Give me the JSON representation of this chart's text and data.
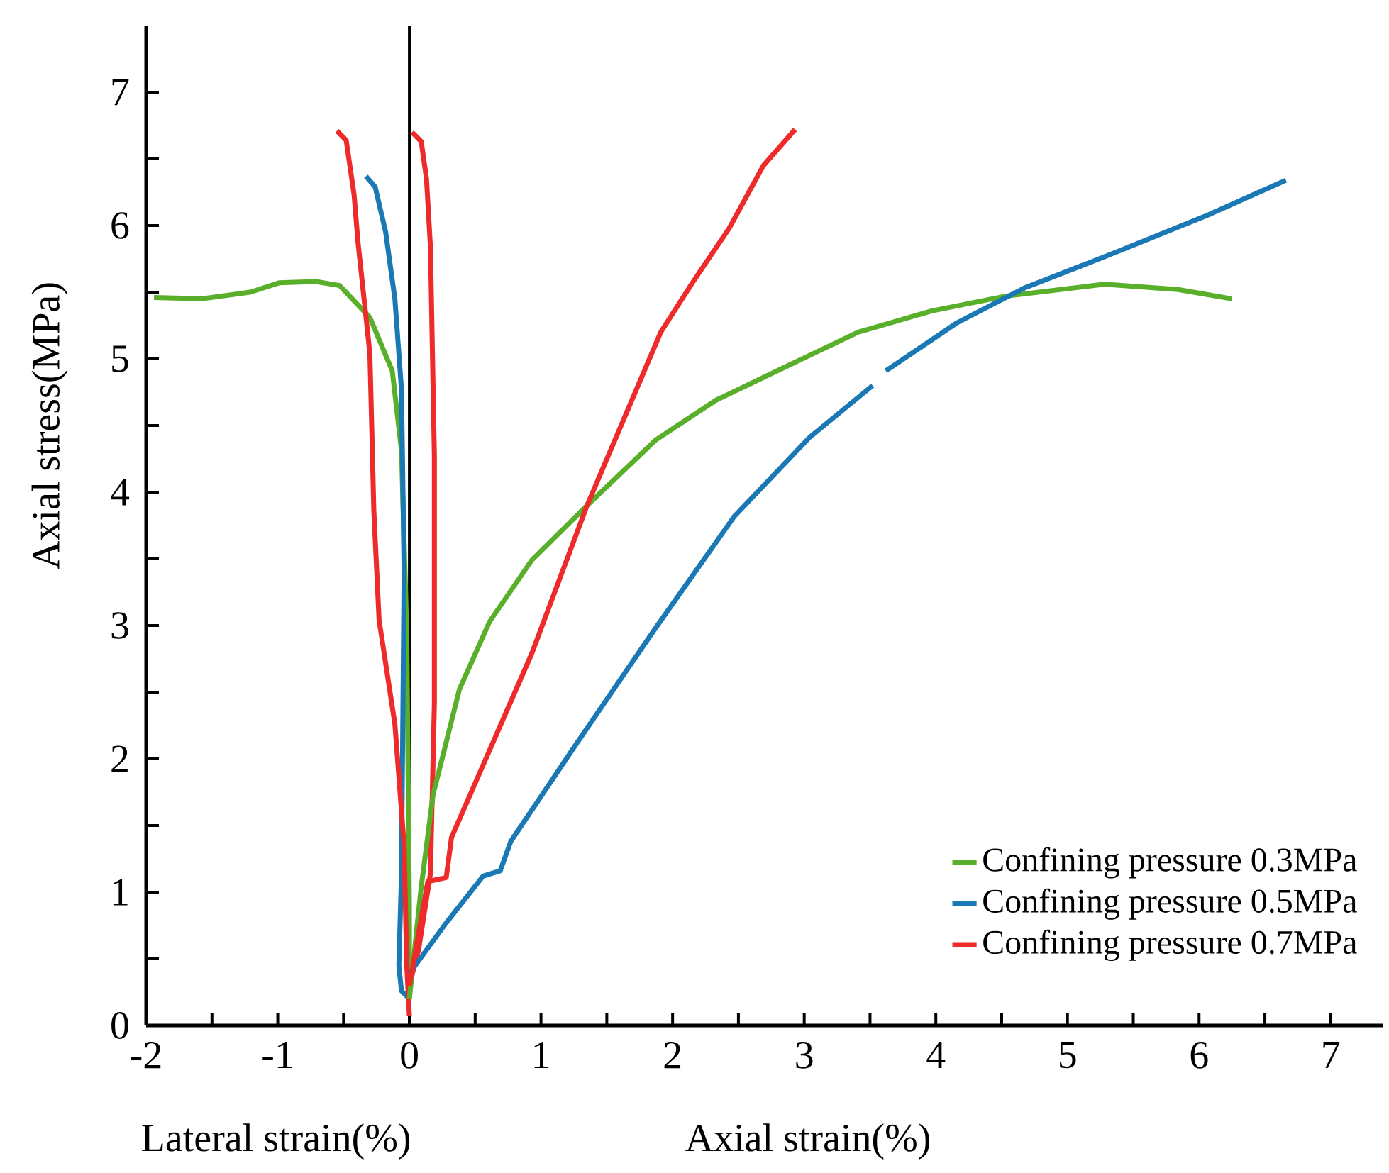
{
  "chart_data": {
    "type": "line",
    "xlabel": "Axial strain(%)",
    "ylabel": "Axial stress(MPa)",
    "annotations": [
      "Lateral strain(%)"
    ],
    "xlim": [
      -2,
      7.4
    ],
    "ylim": [
      0,
      7.5
    ],
    "xticks": [
      -2,
      {
        "value": -1.5,
        "label": null
      },
      -1,
      {
        "value": -0.5,
        "label": null
      },
      0,
      {
        "value": 0.5,
        "label": null
      },
      1,
      {
        "value": 1.5,
        "label": null
      },
      2,
      {
        "value": 2.5,
        "label": null
      },
      3,
      {
        "value": 3.5,
        "label": null
      },
      4,
      {
        "value": 4.5,
        "label": null
      },
      5,
      {
        "value": 5.5,
        "label": null
      },
      6,
      {
        "value": 6.5,
        "label": null
      },
      7
    ],
    "yticks": [
      0,
      {
        "value": 0.5,
        "label": null
      },
      1,
      {
        "value": 1.5,
        "label": null
      },
      2,
      {
        "value": 2.5,
        "label": null
      },
      3,
      {
        "value": 3.5,
        "label": null
      },
      4,
      {
        "value": 4.5,
        "label": null
      },
      5,
      {
        "value": 5.5,
        "label": null
      },
      6,
      {
        "value": 6.5,
        "label": null
      },
      7
    ],
    "grid": false,
    "legend": "bottom right",
    "marker": "none",
    "line_style": "solid",
    "ref_lines": [
      {
        "axis": "x",
        "value": 0,
        "label": null,
        "color": "#000000"
      }
    ],
    "series": [
      {
        "name": "Confining pressure 0.3MPa",
        "color": "#5aaf2a",
        "x": [
          0,
          0.09,
          0.18,
          0.38,
          0.61,
          0.93,
          1.35,
          1.87,
          2.33,
          2.9,
          3.41,
          3.97,
          4.53,
          5.28,
          5.84,
          6.25
        ],
        "values": [
          0.2,
          1.04,
          1.73,
          2.52,
          3.03,
          3.49,
          3.9,
          4.39,
          4.69,
          4.96,
          5.2,
          5.36,
          5.47,
          5.56,
          5.52,
          5.45
        ]
      },
      {
        "name": "Confining pressure 0.5MPa",
        "color": "#1a78b4",
        "x": [
          0,
          0.28,
          0.56,
          0.69,
          0.77,
          1.26,
          1.87,
          2.47,
          3.04,
          3.52,
          3.57,
          3.62,
          4.16,
          4.67,
          5.37,
          6.07,
          6.66
        ],
        "values": [
          0.39,
          0.77,
          1.12,
          1.16,
          1.38,
          2.1,
          2.98,
          3.82,
          4.41,
          4.8,
          null,
          4.91,
          5.27,
          5.53,
          5.8,
          6.08,
          6.34
        ]
      },
      {
        "name": "Confining pressure 0.7MPa",
        "color": "#ee2a2a",
        "x": [
          0,
          0.14,
          0.28,
          0.32,
          0.93,
          1.35,
          1.91,
          2.15,
          2.43,
          2.69,
          2.93
        ],
        "values": [
          0.3,
          1.08,
          1.11,
          1.41,
          2.79,
          3.9,
          5.2,
          5.57,
          5.98,
          6.45,
          6.72
        ]
      },
      {
        "color": "#5aaf2a",
        "x": [
          -1.94,
          -1.58,
          -1.21,
          -0.99,
          -0.71,
          -0.53,
          -0.3,
          -0.13,
          -0.06,
          -0.02,
          0,
          0
        ],
        "values": [
          5.46,
          5.45,
          5.5,
          5.57,
          5.58,
          5.55,
          5.31,
          4.91,
          4.31,
          2.94,
          0.9,
          0.2
        ]
      },
      {
        "color": "#1a78b4",
        "x": [
          -0.33,
          -0.26,
          -0.18,
          -0.11,
          -0.06,
          -0.04,
          -0.06,
          -0.08,
          -0.06,
          0
        ],
        "values": [
          6.37,
          6.29,
          5.95,
          5.45,
          4.77,
          3.4,
          1.13,
          0.45,
          0.26,
          0.2
        ]
      },
      {
        "color": "#ee2a2a",
        "x": [
          -0.55,
          -0.48,
          -0.42,
          -0.39,
          -0.3,
          -0.27,
          -0.23,
          -0.11,
          -0.04,
          -0.02,
          0
        ],
        "values": [
          6.71,
          6.64,
          6.23,
          5.87,
          5.04,
          3.86,
          3.04,
          2.26,
          1.35,
          0.45,
          0.07
        ]
      },
      {
        "color": "#ee2a2a",
        "x": [
          0.02,
          0.09,
          0.13,
          0.16,
          0.19,
          0.19,
          0.16,
          0.07,
          0
        ],
        "values": [
          6.7,
          6.63,
          6.35,
          5.84,
          4.27,
          2.42,
          1.14,
          0.57,
          0.3
        ]
      }
    ]
  }
}
